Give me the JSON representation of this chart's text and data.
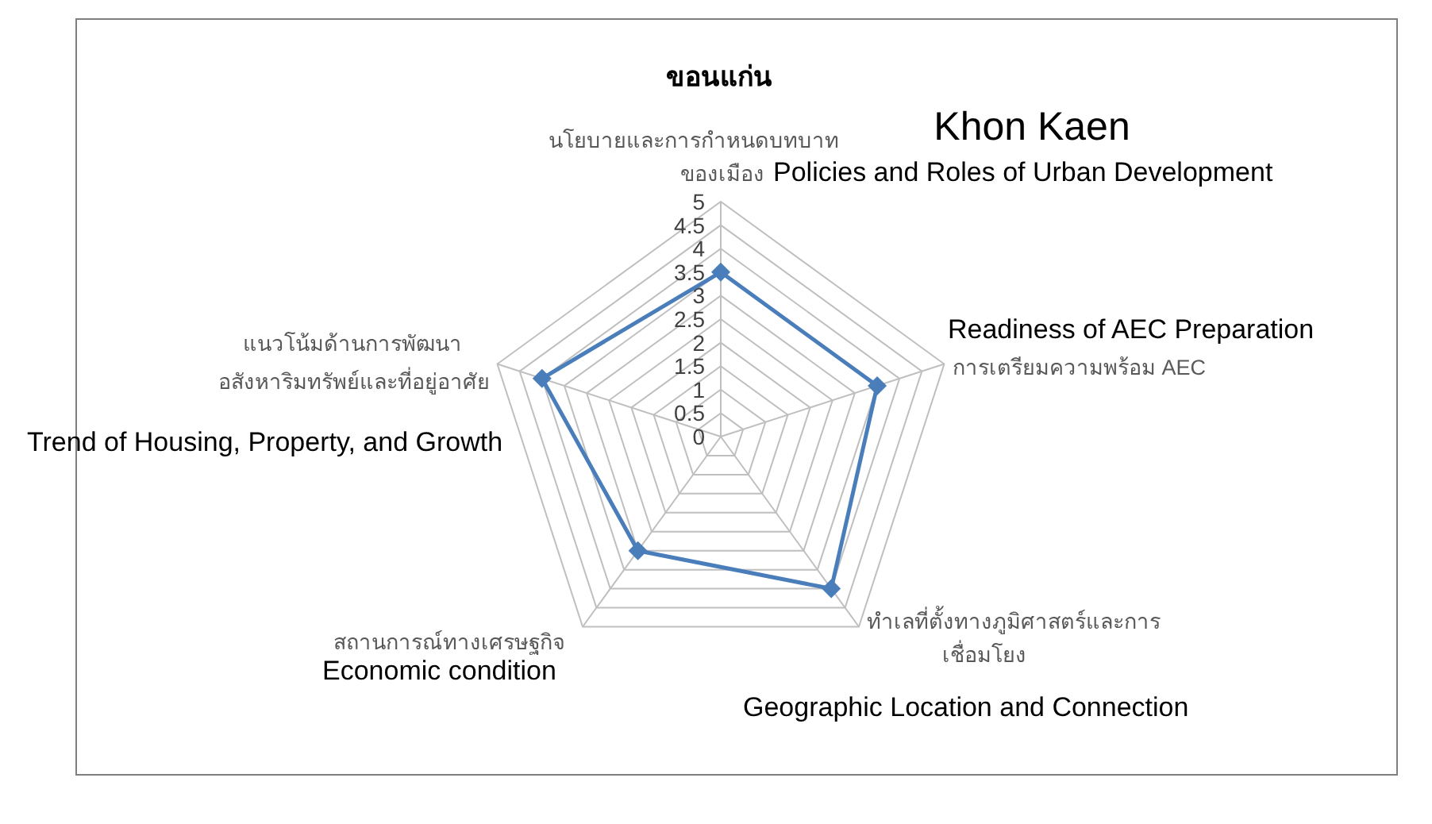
{
  "chart_data": {
    "type": "radar",
    "title": "ขอนแก่น",
    "subtitle": "Khon Kaen",
    "categories": [
      "นโยบายและการกำหนดบทบาท\nของเมือง",
      "การเตรียมความพร้อม AEC",
      "ทำเลที่ตั้งทางภูมิศาสตร์และการ\nเชื่อมโยง",
      "สถานการณ์ทางเศรษฐกิจ",
      "แนวโน้มด้านการพัฒนา\nอสังหาริมทรัพย์และที่อยู่อาศัย"
    ],
    "series": [
      {
        "color": "#4a7ebb",
        "values": [
          3.5,
          3.5,
          4,
          3,
          4
        ]
      }
    ],
    "ylim": [
      0,
      5
    ],
    "yticks": [
      0,
      0.5,
      1,
      1.5,
      2,
      2.5,
      3,
      3.5,
      4,
      4.5,
      5
    ],
    "grid": true,
    "marker": "diamond",
    "line_style": "solid",
    "annotations": [
      "Policies and Roles of Urban Development",
      "Readiness of AEC Preparation",
      "Geographic Location and Connection",
      "Economic condition",
      "Trend of Housing, Property, and Growth"
    ]
  }
}
